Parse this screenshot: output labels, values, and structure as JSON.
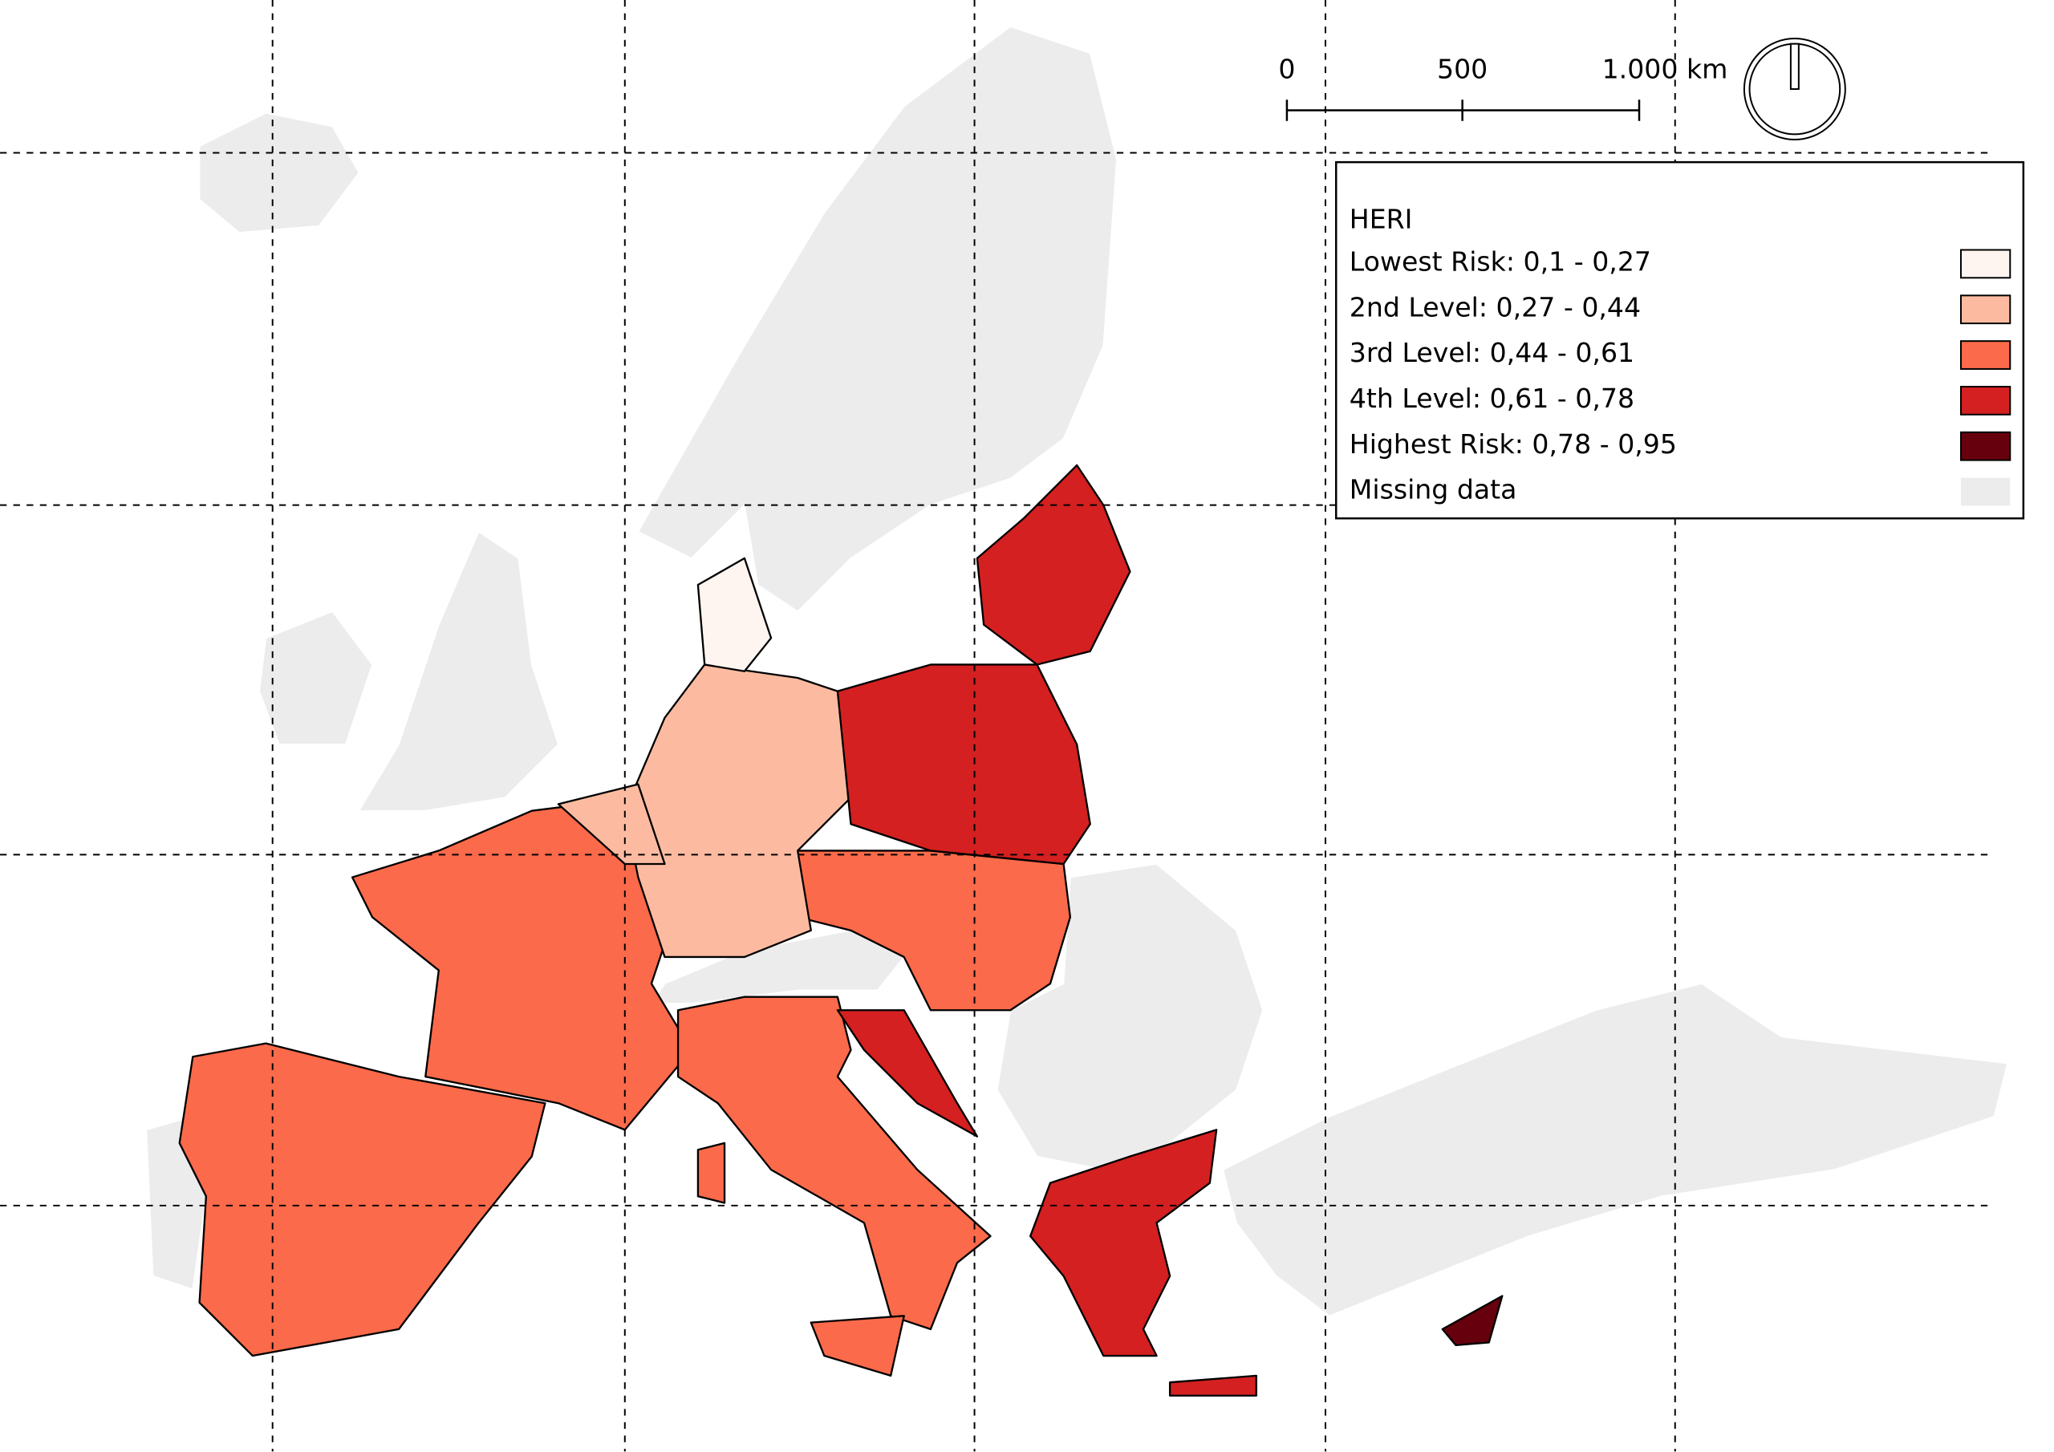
{
  "legend": {
    "title": "HERI",
    "items": [
      {
        "label": "Lowest Risk: 0,1 - 0,27",
        "color": "#fff5f0"
      },
      {
        "label": "2nd Level: 0,27 - 0,44",
        "color": "#fcbba1"
      },
      {
        "label": "3rd Level: 0,44 - 0,61",
        "color": "#fb6a4a"
      },
      {
        "label": "4th Level: 0,61 - 0,78",
        "color": "#d42020"
      },
      {
        "label": "Highest Risk: 0,78 - 0,95",
        "color": "#67000d"
      },
      {
        "label": "Missing data",
        "color": "#ececec"
      }
    ]
  },
  "scale_bar": {
    "labels": [
      "0",
      "500",
      "1.000 km"
    ]
  }
}
